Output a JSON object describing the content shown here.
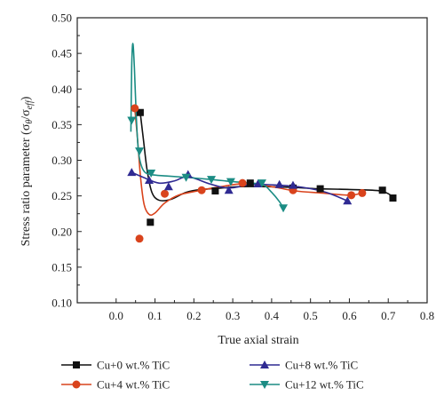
{
  "chart_data": {
    "type": "scatter",
    "title": "",
    "xlabel": "True axial strain",
    "ylabel": "Stress ratio parameter (σ",
    "ylabel_sub1": "θ",
    "ylabel_mid": "/σ",
    "ylabel_sub2": "eff",
    "ylabel_end": ")",
    "xlim": [
      -0.1,
      0.8
    ],
    "ylim": [
      0.1,
      0.5
    ],
    "x_ticks": [
      0.0,
      0.1,
      0.2,
      0.3,
      0.4,
      0.5,
      0.6,
      0.7,
      0.8
    ],
    "y_ticks": [
      0.1,
      0.15,
      0.2,
      0.25,
      0.3,
      0.35,
      0.4,
      0.45,
      0.5
    ],
    "x_tick_labels": [
      "0.0",
      "0.1",
      "0.2",
      "0.3",
      "0.4",
      "0.5",
      "0.6",
      "0.7",
      "0.8"
    ],
    "y_tick_labels": [
      "0.10",
      "0.15",
      "0.20",
      "0.25",
      "0.30",
      "0.35",
      "0.40",
      "0.45",
      "0.50"
    ],
    "grid": false,
    "legend_position": "bottom",
    "series": [
      {
        "name": "Cu+0 wt.% TiC",
        "marker": "square",
        "color": "#111111",
        "points": [
          [
            0.062,
            0.367
          ],
          [
            0.088,
            0.213
          ],
          [
            0.255,
            0.257
          ],
          [
            0.345,
            0.268
          ],
          [
            0.455,
            0.261
          ],
          [
            0.525,
            0.26
          ],
          [
            0.685,
            0.258
          ],
          [
            0.712,
            0.247
          ]
        ],
        "curve": [
          [
            0.062,
            0.367
          ],
          [
            0.07,
            0.33
          ],
          [
            0.08,
            0.285
          ],
          [
            0.092,
            0.255
          ],
          [
            0.11,
            0.244
          ],
          [
            0.14,
            0.245
          ],
          [
            0.18,
            0.255
          ],
          [
            0.22,
            0.259
          ],
          [
            0.27,
            0.261
          ],
          [
            0.32,
            0.263
          ],
          [
            0.38,
            0.263
          ],
          [
            0.45,
            0.262
          ],
          [
            0.52,
            0.26
          ],
          [
            0.6,
            0.259
          ],
          [
            0.68,
            0.257
          ],
          [
            0.712,
            0.249
          ]
        ]
      },
      {
        "name": "Cu+4 wt.% TiC",
        "marker": "circle",
        "color": "#d9431c",
        "points": [
          [
            0.048,
            0.373
          ],
          [
            0.06,
            0.19
          ],
          [
            0.125,
            0.253
          ],
          [
            0.22,
            0.258
          ],
          [
            0.325,
            0.268
          ],
          [
            0.455,
            0.258
          ],
          [
            0.605,
            0.251
          ],
          [
            0.633,
            0.254
          ]
        ],
        "curve": [
          [
            0.048,
            0.373
          ],
          [
            0.055,
            0.33
          ],
          [
            0.063,
            0.275
          ],
          [
            0.072,
            0.238
          ],
          [
            0.085,
            0.224
          ],
          [
            0.1,
            0.226
          ],
          [
            0.125,
            0.24
          ],
          [
            0.16,
            0.251
          ],
          [
            0.21,
            0.257
          ],
          [
            0.27,
            0.263
          ],
          [
            0.33,
            0.267
          ],
          [
            0.4,
            0.263
          ],
          [
            0.46,
            0.257
          ],
          [
            0.53,
            0.254
          ],
          [
            0.6,
            0.251
          ],
          [
            0.633,
            0.254
          ]
        ]
      },
      {
        "name": "Cu+8 wt.% TiC",
        "marker": "triangle-up",
        "color": "#2f2a92",
        "points": [
          [
            0.04,
            0.283
          ],
          [
            0.085,
            0.272
          ],
          [
            0.135,
            0.263
          ],
          [
            0.185,
            0.28
          ],
          [
            0.29,
            0.258
          ],
          [
            0.365,
            0.267
          ],
          [
            0.42,
            0.266
          ],
          [
            0.455,
            0.265
          ],
          [
            0.595,
            0.243
          ]
        ],
        "curve": [
          [
            0.04,
            0.283
          ],
          [
            0.07,
            0.276
          ],
          [
            0.11,
            0.268
          ],
          [
            0.15,
            0.271
          ],
          [
            0.185,
            0.277
          ],
          [
            0.24,
            0.267
          ],
          [
            0.29,
            0.261
          ],
          [
            0.35,
            0.266
          ],
          [
            0.42,
            0.265
          ],
          [
            0.48,
            0.262
          ],
          [
            0.54,
            0.255
          ],
          [
            0.595,
            0.243
          ]
        ]
      },
      {
        "name": "Cu+12 wt.% TiC",
        "marker": "triangle-down",
        "color": "#1b8c84",
        "points": [
          [
            0.04,
            0.356
          ],
          [
            0.06,
            0.313
          ],
          [
            0.09,
            0.282
          ],
          [
            0.18,
            0.276
          ],
          [
            0.245,
            0.273
          ],
          [
            0.295,
            0.27
          ],
          [
            0.375,
            0.268
          ],
          [
            0.43,
            0.233
          ]
        ],
        "curve": [
          [
            0.038,
            0.34
          ],
          [
            0.04,
            0.43
          ],
          [
            0.043,
            0.464
          ],
          [
            0.047,
            0.43
          ],
          [
            0.052,
            0.36
          ],
          [
            0.058,
            0.31
          ],
          [
            0.07,
            0.286
          ],
          [
            0.09,
            0.28
          ],
          [
            0.13,
            0.278
          ],
          [
            0.18,
            0.276
          ],
          [
            0.245,
            0.273
          ],
          [
            0.3,
            0.27
          ],
          [
            0.35,
            0.268
          ],
          [
            0.38,
            0.265
          ],
          [
            0.4,
            0.255
          ],
          [
            0.42,
            0.242
          ],
          [
            0.43,
            0.233
          ]
        ]
      }
    ]
  }
}
